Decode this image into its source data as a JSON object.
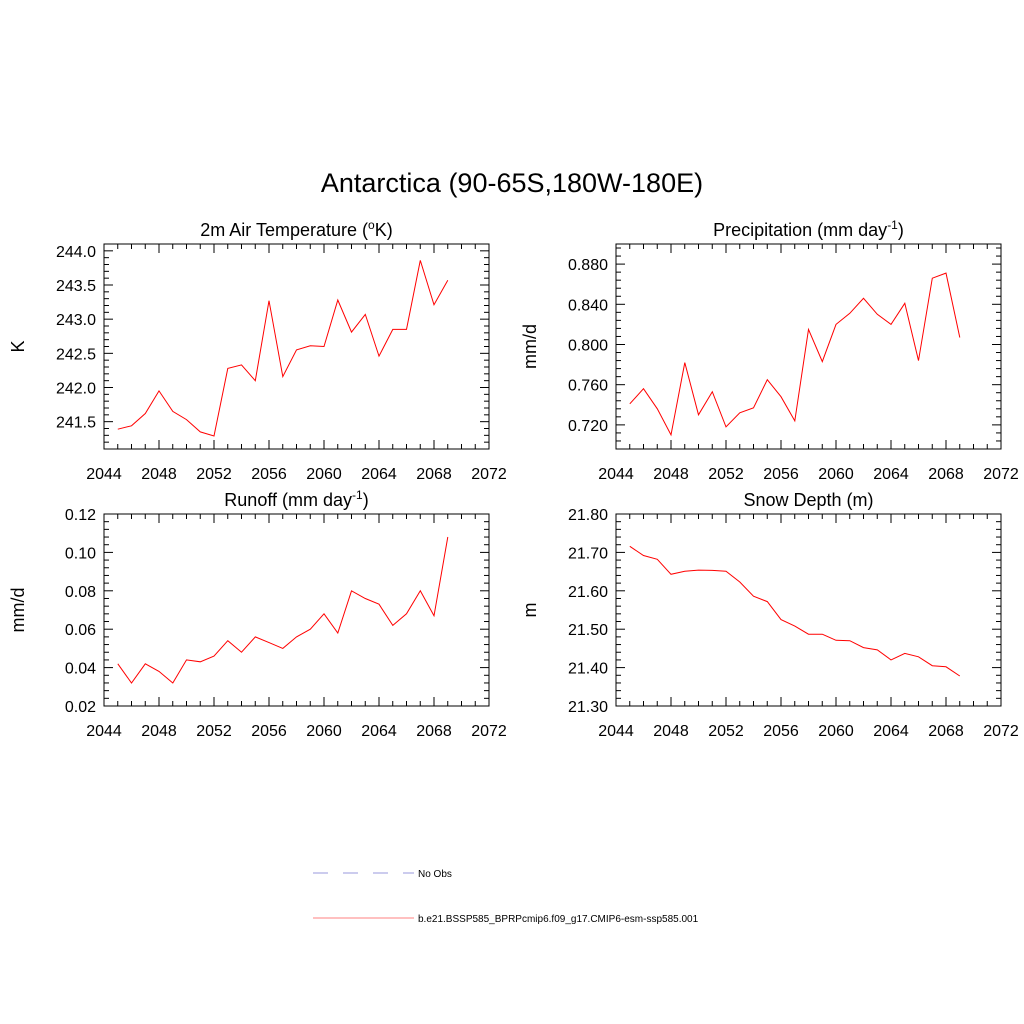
{
  "page": {
    "title": "Antarctica (90-65S,180W-180E)"
  },
  "chart_data": [
    {
      "type": "line",
      "title": "2m Air Temperature (",
      "title_sup": "o",
      "title_tail": "K)",
      "ylabel": "K",
      "xlim": [
        2044,
        2072
      ],
      "ylim": [
        241.1,
        244.1
      ],
      "xticks": [
        "2044",
        "2048",
        "2052",
        "2056",
        "2060",
        "2064",
        "2068",
        "2072"
      ],
      "yticks": [
        "241.5",
        "242.0",
        "242.5",
        "243.0",
        "243.5",
        "244.0"
      ],
      "x": [
        2045,
        2046,
        2047,
        2048,
        2049,
        2050,
        2051,
        2052,
        2053,
        2054,
        2055,
        2056,
        2057,
        2058,
        2059,
        2060,
        2061,
        2062,
        2063,
        2064,
        2065,
        2066,
        2067,
        2068,
        2069
      ],
      "series": [
        {
          "color": "#ff0000",
          "values": [
            241.39,
            241.44,
            241.62,
            241.95,
            241.65,
            241.53,
            241.35,
            241.29,
            242.28,
            242.33,
            242.1,
            243.27,
            242.16,
            242.55,
            242.61,
            242.6,
            243.28,
            242.81,
            243.07,
            242.46,
            242.85,
            242.85,
            243.86,
            243.21,
            243.57
          ]
        }
      ]
    },
    {
      "type": "line",
      "title": "Precipitation (mm day",
      "title_sup": "-1",
      "title_tail": ")",
      "ylabel": "mm/d",
      "xlim": [
        2044,
        2072
      ],
      "ylim": [
        0.696,
        0.9
      ],
      "xticks": [
        "2044",
        "2048",
        "2052",
        "2056",
        "2060",
        "2064",
        "2068",
        "2072"
      ],
      "yticks": [
        "0.720",
        "0.760",
        "0.800",
        "0.840",
        "0.880"
      ],
      "x": [
        2045,
        2046,
        2047,
        2048,
        2049,
        2050,
        2051,
        2052,
        2053,
        2054,
        2055,
        2056,
        2057,
        2058,
        2059,
        2060,
        2061,
        2062,
        2063,
        2064,
        2065,
        2066,
        2067,
        2068,
        2069
      ],
      "series": [
        {
          "color": "#ff0000",
          "values": [
            0.741,
            0.756,
            0.736,
            0.71,
            0.782,
            0.73,
            0.753,
            0.718,
            0.732,
            0.737,
            0.765,
            0.748,
            0.724,
            0.815,
            0.783,
            0.82,
            0.831,
            0.846,
            0.83,
            0.82,
            0.841,
            0.784,
            0.866,
            0.871,
            0.807
          ]
        }
      ]
    },
    {
      "type": "line",
      "title": "Runoff (mm day",
      "title_sup": "-1",
      "title_tail": ")",
      "ylabel": "mm/d",
      "xlim": [
        2044,
        2072
      ],
      "ylim": [
        0.02,
        0.12
      ],
      "xticks": [
        "2044",
        "2048",
        "2052",
        "2056",
        "2060",
        "2064",
        "2068",
        "2072"
      ],
      "yticks": [
        "0.02",
        "0.04",
        "0.06",
        "0.08",
        "0.10",
        "0.12"
      ],
      "x": [
        2045,
        2046,
        2047,
        2048,
        2049,
        2050,
        2051,
        2052,
        2053,
        2054,
        2055,
        2056,
        2057,
        2058,
        2059,
        2060,
        2061,
        2062,
        2063,
        2064,
        2065,
        2066,
        2067,
        2068,
        2069
      ],
      "series": [
        {
          "color": "#ff0000",
          "values": [
            0.042,
            0.032,
            0.042,
            0.038,
            0.032,
            0.044,
            0.043,
            0.046,
            0.054,
            0.048,
            0.056,
            0.053,
            0.05,
            0.056,
            0.06,
            0.068,
            0.058,
            0.08,
            0.076,
            0.073,
            0.062,
            0.068,
            0.08,
            0.067,
            0.108
          ]
        }
      ]
    },
    {
      "type": "line",
      "title": "Snow Depth (m)",
      "title_sup": "",
      "title_tail": "",
      "ylabel": "m",
      "xlim": [
        2044,
        2072
      ],
      "ylim": [
        21.3,
        21.8
      ],
      "xticks": [
        "2044",
        "2048",
        "2052",
        "2056",
        "2060",
        "2064",
        "2068",
        "2072"
      ],
      "yticks": [
        "21.30",
        "21.40",
        "21.50",
        "21.60",
        "21.70",
        "21.80"
      ],
      "x": [
        2045,
        2046,
        2047,
        2048,
        2049,
        2050,
        2051,
        2052,
        2053,
        2054,
        2055,
        2056,
        2057,
        2058,
        2059,
        2060,
        2061,
        2062,
        2063,
        2064,
        2065,
        2066,
        2067,
        2068,
        2069
      ],
      "series": [
        {
          "color": "#ff0000",
          "values": [
            21.716,
            21.692,
            21.682,
            21.643,
            21.651,
            21.654,
            21.653,
            21.651,
            21.623,
            21.586,
            21.572,
            21.525,
            21.508,
            21.487,
            21.487,
            21.471,
            21.47,
            21.452,
            21.446,
            21.42,
            21.437,
            21.428,
            21.405,
            21.402,
            21.378
          ]
        }
      ]
    }
  ],
  "legend": {
    "items": [
      {
        "label": "No Obs",
        "color": "#9999dd",
        "dash": true
      },
      {
        "label": "b.e21.BSSP585_BPRPcmip6.f09_g17.CMIP6-esm-ssp585.001",
        "color": "#ff8080",
        "dash": false
      }
    ]
  }
}
